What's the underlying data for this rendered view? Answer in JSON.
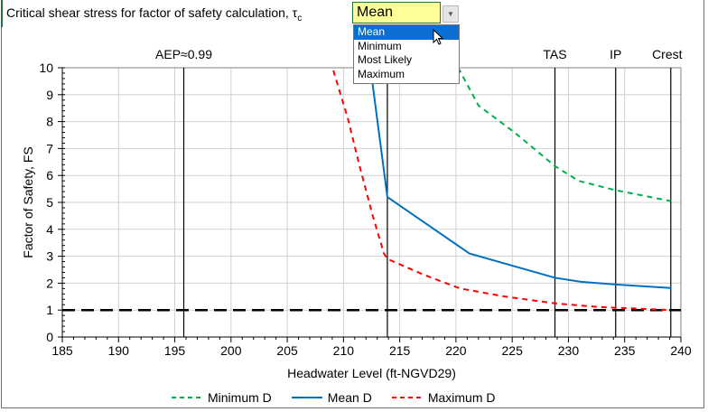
{
  "header": {
    "title": "Critical shear stress for factor of safety calculation, τ",
    "title_sub": "c"
  },
  "dropdown": {
    "value": "Mean",
    "options": [
      "Mean",
      "Minimum",
      "Most Likely",
      "Maximum"
    ],
    "selected": "Mean",
    "arrow_icon": "chevron-down-icon"
  },
  "colors": {
    "minimum": "#00b050",
    "mean": "#0070c0",
    "maximum": "#ff0000",
    "threshold": "#000000",
    "selection": "#0a6fd1",
    "combo_bg": "#ffff99"
  },
  "chart_data": {
    "type": "line",
    "xlabel": "Headwater Level (ft-NGVD29)",
    "ylabel": "Factor of Safety, FS",
    "xlim": [
      185,
      240
    ],
    "ylim": [
      0,
      10
    ],
    "xticks": [
      185,
      190,
      195,
      200,
      205,
      210,
      215,
      220,
      225,
      230,
      235,
      240
    ],
    "yticks": [
      0,
      1,
      2,
      3,
      4,
      5,
      6,
      7,
      8,
      9,
      10
    ],
    "grid": true,
    "legend": "bottom",
    "reference_lines": [
      {
        "label": "AEP≈0.99",
        "x": 195.8
      },
      {
        "label": "",
        "x": 213.9
      },
      {
        "label": "TAS",
        "x": 228.8
      },
      {
        "label": "IP",
        "x": 234.2
      },
      {
        "label": "Crest",
        "x": 239.1
      }
    ],
    "threshold": {
      "y": 1
    },
    "series": [
      {
        "name": "Minimum D",
        "style": "dashed",
        "x": [
          220.2,
          222,
          225.2,
          228.8,
          230.9,
          234.2,
          239.1
        ],
        "y": [
          10,
          8.6,
          7.6,
          6.35,
          5.8,
          5.45,
          5.05
        ]
      },
      {
        "name": "Mean D",
        "style": "solid",
        "x": [
          212.4,
          213.9,
          221.2,
          228.8,
          231.1,
          234.2,
          239.1
        ],
        "y": [
          10,
          5.2,
          3.1,
          2.2,
          2.05,
          1.95,
          1.82
        ]
      },
      {
        "name": "Maximum D",
        "style": "dashed",
        "x": [
          209.1,
          210.4,
          211.4,
          212.6,
          213.6,
          213.9,
          217.2,
          220.4,
          224.4,
          228.8,
          232.5,
          239.1
        ],
        "y": [
          9.9,
          8.1,
          6.4,
          4.5,
          3.1,
          2.9,
          2.3,
          1.8,
          1.5,
          1.25,
          1.12,
          1.0
        ]
      }
    ]
  }
}
